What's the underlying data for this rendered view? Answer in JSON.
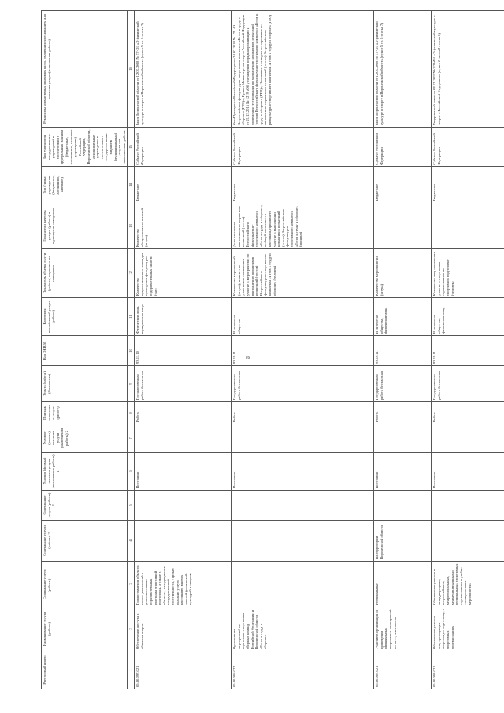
{
  "page_number": "26",
  "headers": [
    "Реестровый номер",
    "Наименование услуги (работы)",
    "Содержание услуги (работы) 1",
    "Содержание услуги (работы) 2",
    "Содержание услуги (работы) 3",
    "Условие (формы) оказания услуги (выполнения работы) 1",
    "Условие (формы) оказания услуги (выполнения работы) 2",
    "Признак отнесения к услуге (работе)",
    "Услуга (работа) (бесплатная)",
    "Код ОКВЭД",
    "Категория потребителей услуги (работы)",
    "Показатель объема услуги (работы) и единица его измерения",
    "Показатели качества услуги (работы) и единицы их измерения",
    "Тип (типы) учреждения (бюджетное, автономное, казенное)",
    "Вид учредителя государственных учреждений в соответствии с федеральным законом (бюджетные, автономные, казенные учреждения) Российской Федерации, Воронежской области, муниципальные учреждения в соответствии с государственным заданием (муниципальным) услуги или выполняемые работы",
    "Реквизиты нормативных правовых актов, являющихся основанием для оказания услуги (выполнения работы)"
  ],
  "col_numbers": [
    "1",
    "2",
    "3",
    "4",
    "5",
    "6",
    "7",
    "8",
    "9",
    "10",
    "11",
    "12",
    "13",
    "14",
    "15",
    "16"
  ],
  "rows": [
    [
      "05.00.097.021",
      "Обеспечение доступа к объектам спорта",
      "Предоставление объектов спорта для занятий и дополнительных образовательных программ спортивной подготовки, а также в объектах, находящихся в государственной собственности, с целью оказания услуги населению, в целях занятий физической культурой и спортом",
      "",
      "",
      "Постоянно",
      "",
      "Работа",
      "Государственная работа бесплатная",
      "93.11.10",
      "Физические лица, юридические лица",
      "Количество предоставленных часов для проведения физкультурно-оздоровительных занятий (час)",
      "Количество обслуживаемых жителей (штука)",
      "Бюджетное",
      "Субъект Российской Федерации",
      "Закон Воронежской области от 12.07.2008 № 57-ОЗ «О физической культуре и спорте в Воронежской области» (пункт 5 ст. 5 статья 7)"
    ],
    [
      "05.00.006.022",
      "Организация мероприятий по подготовке спортивных сборных команд Российской Федерации и Воронежской области «Готов к труду и обороне»",
      "",
      "",
      "",
      "Постоянно",
      "",
      "Работа",
      "Государственная работа бесплатная",
      "93.19.11",
      "В интересах общества",
      "Количество мероприятий (штука), количество участников, принявших участие в мероприятиях по выполнению нормативов испытаний (тестов) Всероссийского физкультурно-спортивного комплекса «Готов к труду и обороне» (человек)",
      "Доля населения, выполнившего нормативы испытаний (тестов) Всероссийского физкультурно-спортивного комплекса «Готов к труду и обороне», в общей численности населения, принявшего участие в выполнении нормативов испытаний (тестов) Всероссийского физкультурно-спортивного комплекса «Готов к труду и обороне» (процент)",
      "Бюджетное",
      "Субъект Российской Федерации",
      "Указ Президента Российской Федерации от 24.03.2014 № 172 «О Всероссийском физкультурно-спортивном комплексе «Готов к труду и обороне» (ГТО)»; Приказ Министерства спорта Российской Федерации от 21.12.2015 № 1219 «Об утверждении порядка организации и проведения тестирования по выполнению нормативов испытаний (тестов) Всероссийского физкультурно-спортивного комплекса «Готов к труду и обороне» (ГТО)»; Положение о центрах тестирования по выполнению нормативов испытаний (тестов) Всероссийского физкультурно-спортивного комплекса «Готов к труду и обороне» (ГТО)"
    ],
    [
      "05.00.007.021",
      "Участие в организации и проведении официальных спортивных мероприятий по месту жительства",
      "Региональные",
      "На территории Воронежской области",
      "",
      "Постоянно",
      "",
      "Работа",
      "Государственная работа бесплатная",
      "93.19.11",
      "В интересах общества, физические лица",
      "Количество мероприятий (штука)",
      "",
      "Бюджетное",
      "Субъект Российской Федерации",
      "Закон Воронежской области от 12.07.2008 № 57-ОЗ «О физической культуре и спорте в Воронежской области» (пункт 5 ст. 5 статья 7)"
    ],
    [
      "05.00.008.021",
      "Обеспечение участия лиц, проходящих спортивную подготовку, в спортивных соревнованиях",
      "Обеспечение участия в международных, всероссийских, межрегиональных, межмуниципальных и региональных спортивных соревнованиях и учебно-тренировочных мероприятиях",
      "",
      "",
      "Постоянно",
      "",
      "Работа",
      "Государственная работа бесплатная",
      "93.19.11",
      "В интересах общества, физические лица",
      "Количество лиц, принявших участие в спортивных соревнованиях по спортивной подготовке (человек)",
      "",
      "Бюджетное",
      "Субъект Российской Федерации",
      "Федеральный закон от 04.12.2007 № 329-ФЗ «О физической культуре и спорте в Российской Федерации» (пункт 2 части 2 статьи 8)"
    ]
  ]
}
